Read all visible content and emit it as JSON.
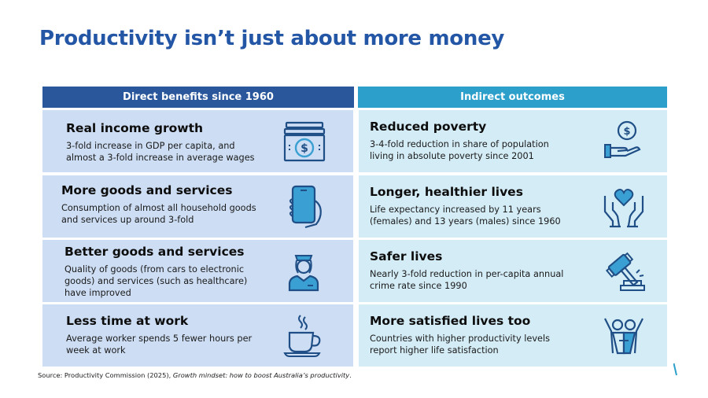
{
  "title": "Productivity isn’t just about more money",
  "columns": {
    "left_header": "Direct benefits since 1960",
    "right_header": "Indirect outcomes"
  },
  "direct_benefits": [
    {
      "title": "Real income growth",
      "description": "3-fold increase in GDP per capita, and almost a 3-fold increase in average wages",
      "icon": "money-stack-icon"
    },
    {
      "title": "More goods and services",
      "description": "Consumption of almost all household goods and services up around 3-fold",
      "icon": "smartphone-hand-icon"
    },
    {
      "title": "Better goods and services",
      "description": "Quality of goods (from cars to electronic goods) and services (such as healthcare) have improved",
      "icon": "nurse-icon"
    },
    {
      "title": "Less time at work",
      "description": "Average worker spends 5 fewer hours per week at work",
      "icon": "coffee-cup-icon"
    }
  ],
  "indirect_outcomes": [
    {
      "title": "Reduced poverty",
      "description": "3-4-fold reduction in share of population living in absolute poverty since 2001",
      "icon": "hand-coin-icon"
    },
    {
      "title": "Longer, healthier lives",
      "description": "Life expectancy increased by 11 years (females) and 13 years (males) since 1960",
      "icon": "hands-heart-icon"
    },
    {
      "title": "Safer lives",
      "description": "Nearly 3-fold reduction in per-capita annual crime rate since 1990",
      "icon": "gavel-icon"
    },
    {
      "title": "More satisfied lives too",
      "description": "Countries with higher productivity levels report higher life satisfaction",
      "icon": "celebrating-people-icon"
    }
  ],
  "source": {
    "prefix": "Source: Productivity Commission (2025), ",
    "title": "Growth mindset: how to boost Australia’s productivity",
    "suffix": "."
  },
  "colors": {
    "title": "#2456a6",
    "left_header_bg": "#2a579c",
    "right_header_bg": "#2c9fca",
    "left_card_bg": "#cdddf3",
    "right_card_bg": "#d4ecf6",
    "icon_stroke": "#1f4f86",
    "icon_fill": "#3a9fd3"
  }
}
